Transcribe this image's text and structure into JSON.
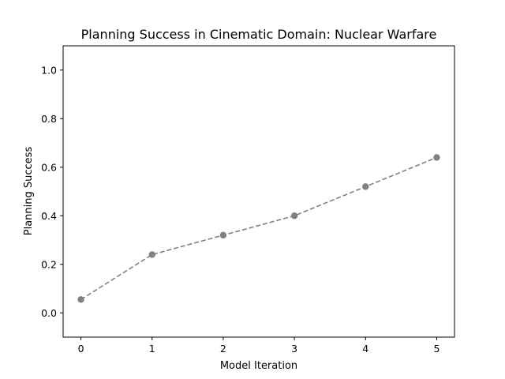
{
  "chart_data": {
    "type": "line",
    "title": "Planning Success in Cinematic Domain: Nuclear Warfare",
    "xlabel": "Model Iteration",
    "ylabel": "Planning Success",
    "x": [
      0,
      1,
      2,
      3,
      4,
      5
    ],
    "series": [
      {
        "values": [
          0.055,
          0.24,
          0.32,
          0.4,
          0.52,
          0.64
        ],
        "color": "#808080",
        "line_style": "dashed",
        "marker": "circle"
      }
    ],
    "xlim": [
      -0.25,
      5.25
    ],
    "ylim": [
      -0.1,
      1.1
    ],
    "xticks": [
      0,
      1,
      2,
      3,
      4,
      5
    ],
    "yticks": [
      0.0,
      0.2,
      0.4,
      0.6,
      0.8,
      1.0
    ],
    "xtick_labels": [
      "0",
      "1",
      "2",
      "3",
      "4",
      "5"
    ],
    "ytick_labels": [
      "0.0",
      "0.2",
      "0.4",
      "0.6",
      "0.8",
      "1.0"
    ],
    "grid": false,
    "legend": "none"
  }
}
